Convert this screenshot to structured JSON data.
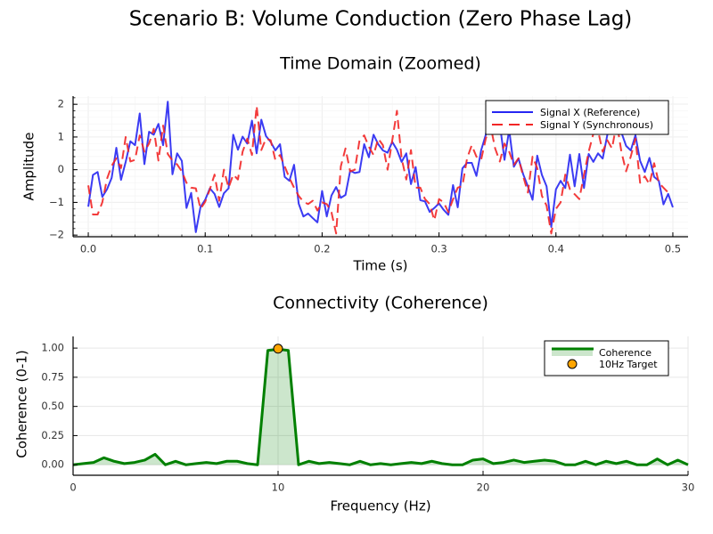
{
  "figure": {
    "title": "Scenario B: Volume Conduction (Zero Phase Lag)"
  },
  "chart_data": [
    {
      "type": "line",
      "title": "Time Domain (Zoomed)",
      "xlabel": "Time (s)",
      "ylabel": "Amplitude",
      "xlim": [
        -0.013,
        0.513
      ],
      "ylim": [
        -2.05,
        2.25
      ],
      "xticks": [
        0.0,
        0.1,
        0.2,
        0.3,
        0.4,
        0.5
      ],
      "xtick_labels": [
        "0.0",
        "0.1",
        "0.2",
        "0.3",
        "0.4",
        "0.5"
      ],
      "yticks": [
        -2,
        -1,
        0,
        1,
        2
      ],
      "ytick_labels": [
        "−2",
        "−1",
        "0",
        "1",
        "2"
      ],
      "grid": true,
      "legend_position": "top-right",
      "x_start": 0.0,
      "x_step": 0.004,
      "series": [
        {
          "name": "Signal X (Reference)",
          "color": "#2626f2",
          "style": "solid",
          "values": [
            -1.13,
            -0.16,
            -0.07,
            -0.83,
            -0.6,
            -0.25,
            0.67,
            -0.31,
            0.24,
            0.87,
            0.75,
            1.72,
            0.17,
            1.16,
            1.07,
            1.4,
            0.75,
            2.08,
            -0.14,
            0.5,
            0.27,
            -1.17,
            -0.71,
            -1.91,
            -1.14,
            -0.92,
            -0.57,
            -0.74,
            -1.14,
            -0.72,
            -0.57,
            1.07,
            0.61,
            1.01,
            0.8,
            1.5,
            0.5,
            1.53,
            1.03,
            0.85,
            0.59,
            0.78,
            -0.22,
            -0.34,
            0.15,
            -1.04,
            -1.43,
            -1.34,
            -1.48,
            -1.61,
            -0.65,
            -1.43,
            -0.79,
            -0.53,
            -0.86,
            -0.77,
            -0.03,
            -0.1,
            -0.07,
            0.78,
            0.38,
            1.07,
            0.78,
            0.59,
            0.52,
            0.85,
            0.61,
            0.24,
            0.5,
            -0.44,
            0.08,
            -0.93,
            -0.97,
            -1.29,
            -1.17,
            -1.03,
            -1.23,
            -1.38,
            -0.47,
            -1.15,
            0.04,
            0.21,
            0.21,
            -0.19,
            0.59,
            1.07,
            2.0,
            1.55,
            1.4,
            0.3,
            1.22,
            0.09,
            0.34,
            -0.14,
            -0.51,
            -0.92,
            0.43,
            -0.16,
            -0.51,
            -1.75,
            -0.6,
            -0.34,
            -0.56,
            0.46,
            -0.51,
            0.48,
            -0.56,
            0.48,
            0.24,
            0.5,
            0.34,
            1.07,
            1.3,
            1.4,
            1.14,
            0.73,
            0.59,
            1.05,
            0.27,
            -0.07,
            0.36,
            -0.22,
            -0.34,
            -1.06,
            -0.74,
            -1.15
          ]
        },
        {
          "name": "Signal Y (Synchronous)",
          "color": "#f22626",
          "style": "dashed",
          "values": [
            -0.48,
            -1.37,
            -1.37,
            -1.0,
            -0.28,
            0.12,
            0.35,
            0.05,
            1.0,
            0.25,
            0.3,
            1.05,
            0.55,
            0.8,
            1.25,
            0.28,
            1.35,
            0.48,
            0.28,
            0.16,
            -0.05,
            -0.4,
            -0.55,
            -0.57,
            -1.2,
            -0.98,
            -0.6,
            -0.15,
            -0.95,
            0.0,
            -0.55,
            -0.15,
            -0.3,
            0.55,
            0.95,
            0.45,
            1.95,
            0.6,
            0.95,
            0.9,
            0.3,
            0.45,
            0.1,
            -0.25,
            -0.55,
            -0.8,
            -0.98,
            -1.05,
            -0.95,
            -1.25,
            -1.0,
            -1.05,
            -1.3,
            -1.95,
            0.1,
            0.65,
            -0.05,
            0.0,
            0.9,
            1.05,
            0.7,
            0.45,
            0.95,
            0.75,
            0.0,
            0.9,
            1.8,
            0.35,
            -0.3,
            0.6,
            -0.55,
            -0.55,
            -0.9,
            -1.05,
            -1.55,
            -0.9,
            -1.0,
            -1.3,
            -0.9,
            -0.55,
            -0.5,
            0.35,
            0.75,
            0.4,
            0.3,
            0.95,
            1.35,
            0.65,
            0.25,
            0.8,
            0.55,
            0.15,
            0.35,
            -0.2,
            -0.7,
            0.4,
            0.05,
            -0.8,
            -1.1,
            -1.95,
            -1.2,
            -1.0,
            -0.15,
            -0.6,
            -0.75,
            -0.9,
            -0.15,
            0.55,
            1.1,
            1.2,
            0.55,
            0.9,
            0.65,
            1.45,
            0.55,
            -0.05,
            0.4,
            0.95,
            -0.4,
            -0.2,
            -0.45,
            0.2,
            -0.4,
            -0.55,
            -0.7
          ]
        }
      ]
    },
    {
      "type": "area",
      "title": "Connectivity (Coherence)",
      "xlabel": "Frequency (Hz)",
      "ylabel": "Coherence (0-1)",
      "xlim": [
        0,
        30
      ],
      "ylim": [
        -0.09,
        1.1
      ],
      "xticks": [
        0,
        10,
        20,
        30
      ],
      "xtick_labels": [
        "0",
        "10",
        "20",
        "30"
      ],
      "yticks": [
        0.0,
        0.25,
        0.5,
        0.75,
        1.0
      ],
      "ytick_labels": [
        "0.00",
        "0.25",
        "0.50",
        "0.75",
        "1.00"
      ],
      "grid": true,
      "legend_position": "top-right",
      "x_start": 0.0,
      "x_step": 0.5,
      "series": [
        {
          "name": "Coherence",
          "color": "#008000",
          "fill_color": "#008000",
          "fill_alpha": 0.2,
          "values": [
            0.0,
            0.01,
            0.02,
            0.06,
            0.03,
            0.01,
            0.02,
            0.04,
            0.09,
            0.0,
            0.03,
            0.0,
            0.01,
            0.02,
            0.01,
            0.03,
            0.03,
            0.01,
            0.0,
            0.98,
            0.99,
            0.98,
            0.0,
            0.03,
            0.01,
            0.02,
            0.01,
            0.0,
            0.03,
            0.0,
            0.01,
            0.0,
            0.01,
            0.02,
            0.01,
            0.03,
            0.01,
            0.0,
            0.0,
            0.04,
            0.05,
            0.01,
            0.02,
            0.04,
            0.02,
            0.03,
            0.04,
            0.03,
            0.0,
            0.0,
            0.03,
            0.0,
            0.03,
            0.01,
            0.03,
            0.0,
            0.0,
            0.05,
            0.0,
            0.04,
            0.0
          ]
        }
      ],
      "markers": [
        {
          "name": "10Hz Target",
          "x": 10,
          "y": 0.995,
          "color": "#ffa500"
        }
      ]
    }
  ]
}
